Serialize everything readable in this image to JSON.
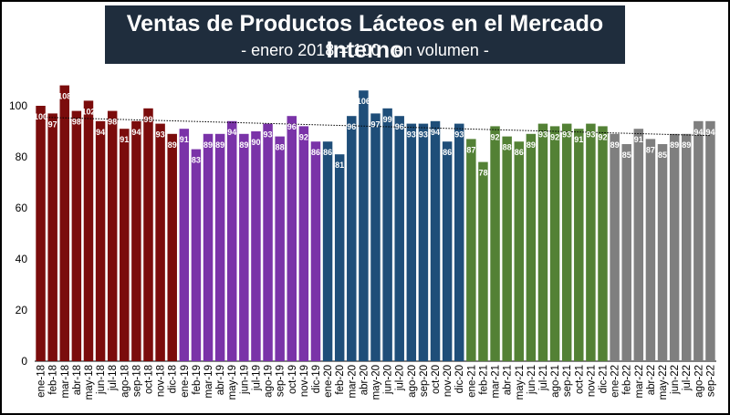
{
  "title": "Ventas de Productos Lácteos en el Mercado Interno",
  "subtitle": "- enero 2018 = 100 , en volumen -",
  "chart_data": {
    "type": "bar",
    "title": "Ventas de Productos Lácteos en el Mercado Interno",
    "subtitle": "- enero 2018 = 100 , en volumen -",
    "xlabel": "",
    "ylabel": "",
    "ylim": [
      0,
      110
    ],
    "yticks": [
      0,
      20,
      40,
      60,
      80,
      100
    ],
    "grid": false,
    "legend": "none",
    "trendline": "dotted",
    "year_colors": {
      "2018": "#7b0c0c",
      "2019": "#7a33a8",
      "2020": "#1f4e79",
      "2021": "#538135",
      "2022": "#7f7f7f"
    },
    "categories": [
      "ene-18",
      "feb-18",
      "mar-18",
      "abr-18",
      "may-18",
      "jun-18",
      "jul-18",
      "ago-18",
      "sep-18",
      "oct-18",
      "nov-18",
      "dic-18",
      "ene-19",
      "feb-19",
      "mar-19",
      "abr-19",
      "may-19",
      "jun-19",
      "jul-19",
      "ago-19",
      "sep-19",
      "oct-19",
      "nov-19",
      "dic-19",
      "ene-20",
      "feb-20",
      "mar-20",
      "abr-20",
      "may-20",
      "jun-20",
      "jul-20",
      "ago-20",
      "sep-20",
      "oct-20",
      "nov-20",
      "dic-20",
      "ene-21",
      "feb-21",
      "mar-21",
      "abr-21",
      "may-21",
      "jun-21",
      "jul-21",
      "ago-21",
      "sep-21",
      "oct-21",
      "nov-21",
      "dic-21",
      "ene-22",
      "feb-22",
      "mar-22",
      "abr-22",
      "may-22",
      "jun-22",
      "jul-22",
      "ago-22",
      "sep-22"
    ],
    "values": [
      100,
      97,
      108,
      98,
      102,
      94,
      98,
      91,
      94,
      99,
      93,
      89,
      91,
      83,
      89,
      89,
      94,
      89,
      90,
      93,
      88,
      96,
      92,
      86,
      86,
      81,
      96,
      106,
      97,
      99,
      96,
      93,
      93,
      94,
      86,
      93,
      87,
      78,
      92,
      88,
      86,
      89,
      93,
      92,
      93,
      91,
      93,
      92,
      89,
      85,
      91,
      87,
      85,
      89,
      89,
      94,
      94
    ],
    "data_labels": [
      "100",
      "97",
      "108",
      "98",
      "102",
      "94",
      "98",
      "91",
      "94",
      "99",
      "93",
      "89",
      "91",
      "83",
      "89",
      "89",
      "94",
      "89",
      "90",
      "93",
      "88",
      "96",
      "92",
      "86",
      "86",
      "81",
      "96",
      "106",
      "97",
      "99",
      "96",
      "93",
      "93",
      "94",
      "86",
      "93",
      "87",
      "78",
      "92",
      "88",
      "86",
      "89",
      "93",
      "92",
      "93",
      "91",
      "93",
      "92",
      "89",
      "85",
      "91",
      "87",
      "85",
      "89",
      "89",
      "94",
      "94"
    ]
  }
}
